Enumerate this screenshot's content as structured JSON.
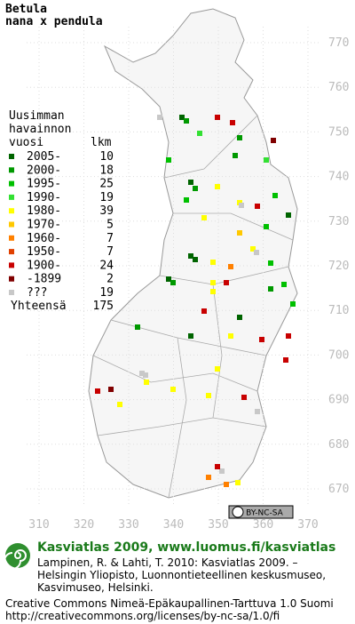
{
  "title": {
    "species": "Betula",
    "taxon": "nana x pendula"
  },
  "legend": {
    "header": [
      "Uusimman",
      "havainnon"
    ],
    "col_year": "vuosi",
    "col_count": "lkm",
    "rows": [
      {
        "label": "2005-",
        "count": 10,
        "color": "#006400"
      },
      {
        "label": "2000-",
        "count": 18,
        "color": "#009900"
      },
      {
        "label": "1995-",
        "count": 25,
        "color": "#00c000"
      },
      {
        "label": "1990-",
        "count": 19,
        "color": "#33e033"
      },
      {
        "label": "1980-",
        "count": 39,
        "color": "#ffff00"
      },
      {
        "label": "1970-",
        "count": 5,
        "color": "#ffc800"
      },
      {
        "label": "1960-",
        "count": 7,
        "color": "#ff8000"
      },
      {
        "label": "1950-",
        "count": 7,
        "color": "#e04000"
      },
      {
        "label": "1900-",
        "count": 24,
        "color": "#c80000"
      },
      {
        "label": "-1899",
        "count": 2,
        "color": "#800000"
      },
      {
        "label": "???",
        "count": 19,
        "color": "#c8c8c8"
      }
    ],
    "total_label": "Yhteensä",
    "total": 175
  },
  "grid": {
    "north": [
      770,
      760,
      750,
      740,
      730,
      720,
      710,
      700,
      690,
      680,
      670
    ],
    "east": [
      310,
      320,
      330,
      340,
      350,
      360,
      370
    ]
  },
  "license_badge": "BY-NC-SA",
  "footer": {
    "brand": "Kasviatlas 2009, www.luomus.fi/kasviatlas",
    "citation": [
      "Lampinen, R. & Lahti, T. 2010: Kasviatlas 2009. –",
      "Helsingin Yliopisto, Luonnontieteellinen keskusmuseo,",
      "Kasvimuseo, Helsinki."
    ],
    "license": [
      "Creative Commons Nimeä-Epäkaupallinen-Tarttuva 1.0 Suomi",
      "http://creativecommons.org/licenses/by-nc-sa/1.0/fi"
    ]
  }
}
